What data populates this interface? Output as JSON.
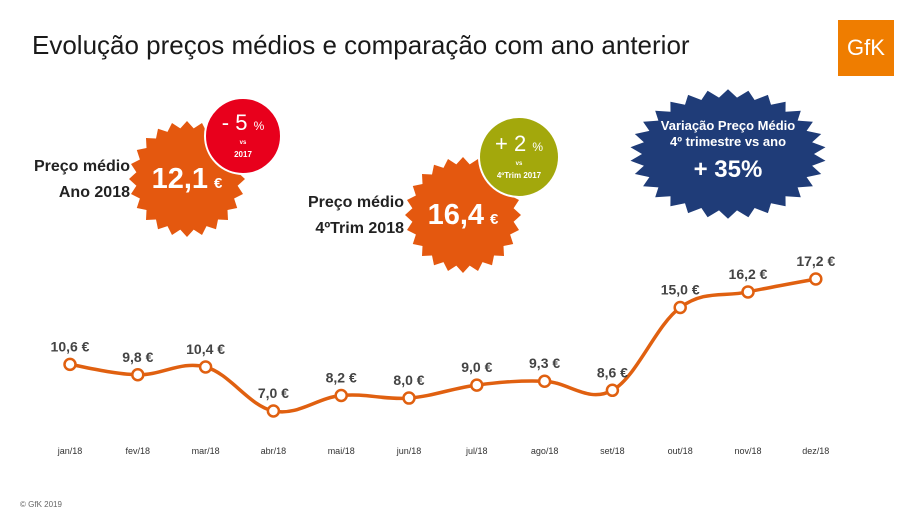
{
  "title": "Evolução preços médios e comparação com ano anterior",
  "logo": "GfK",
  "footer": "© GfK 2019",
  "annual": {
    "label_line1": "Preço médio",
    "label_line2": "Ano 2018",
    "value": "12,1",
    "currency": "€"
  },
  "quarter": {
    "label_line1": "Preço médio",
    "label_line2": "4ºTrim 2018",
    "value": "16,4",
    "currency": "€"
  },
  "annual_change": {
    "value": "- 5",
    "unit": "%",
    "vs": "vs",
    "ref": "2017"
  },
  "quarter_change": {
    "value": "+ 2",
    "unit": "%",
    "vs": "vs",
    "ref": "4ºTrim 2017"
  },
  "variation": {
    "line1": "Variação Preço Médio",
    "line2": "4º trimestre vs ano",
    "value": "+ 35",
    "unit": "%"
  },
  "colors": {
    "orange": "#e4580f",
    "red": "#e8001c",
    "olive": "#a3a80c",
    "navy": "#1f3c78",
    "line": "#e06010"
  },
  "chart_data": {
    "type": "line",
    "categories": [
      "jan/18",
      "fev/18",
      "mar/18",
      "abr/18",
      "mai/18",
      "jun/18",
      "jul/18",
      "ago/18",
      "set/18",
      "out/18",
      "nov/18",
      "dez/18"
    ],
    "values": [
      10.6,
      9.8,
      10.4,
      7.0,
      8.2,
      8.0,
      9.0,
      9.3,
      8.6,
      15.0,
      16.2,
      17.2
    ],
    "labels": [
      "10,6 €",
      "9,8 €",
      "10,4 €",
      "7,0 €",
      "8,2 €",
      "8,0 €",
      "9,0 €",
      "9,3 €",
      "8,6 €",
      "15,0 €",
      "16,2 €",
      "17,2 €"
    ]
  }
}
